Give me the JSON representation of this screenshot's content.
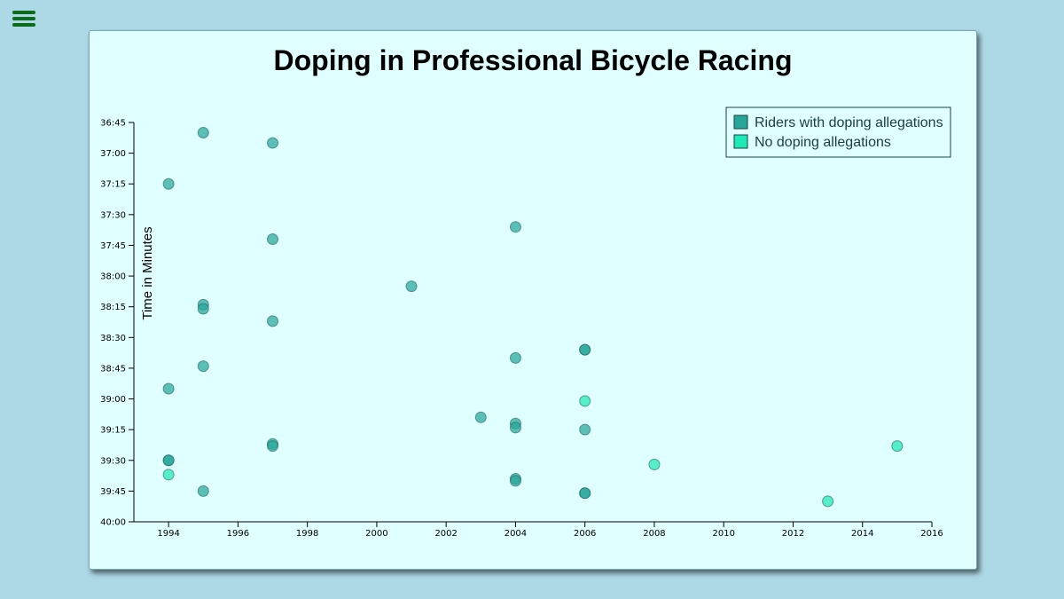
{
  "menu": {
    "icon": "hamburger-menu-icon"
  },
  "chart_data": {
    "type": "scatter",
    "title": "Doping in Professional Bicycle Racing",
    "xlabel": "",
    "ylabel": "Time in Minutes",
    "xlim": [
      1993,
      2016
    ],
    "ylim": [
      "36:45",
      "40:00"
    ],
    "y_inverted": true,
    "x_ticks": [
      1994,
      1996,
      1998,
      2000,
      2002,
      2004,
      2006,
      2008,
      2010,
      2012,
      2014,
      2016
    ],
    "y_ticks": [
      "36:45",
      "37:00",
      "37:15",
      "37:30",
      "37:45",
      "38:00",
      "38:15",
      "38:30",
      "38:45",
      "39:00",
      "39:15",
      "39:30",
      "39:45",
      "40:00"
    ],
    "grid": false,
    "legend_position": "top-right",
    "colors": {
      "doping": "#26a69a",
      "no_doping": "#1de9b6"
    },
    "series": [
      {
        "name": "Riders with doping allegations",
        "color": "#26a69a",
        "points": [
          {
            "x": 1995,
            "y": "36:50"
          },
          {
            "x": 1997,
            "y": "36:55"
          },
          {
            "x": 1994,
            "y": "37:15"
          },
          {
            "x": 2004,
            "y": "37:36"
          },
          {
            "x": 1997,
            "y": "37:42"
          },
          {
            "x": 2001,
            "y": "38:05"
          },
          {
            "x": 1995,
            "y": "38:14"
          },
          {
            "x": 1995,
            "y": "38:16"
          },
          {
            "x": 1997,
            "y": "38:22"
          },
          {
            "x": 2006,
            "y": "38:36"
          },
          {
            "x": 2006,
            "y": "38:36"
          },
          {
            "x": 2004,
            "y": "38:40"
          },
          {
            "x": 1995,
            "y": "38:44"
          },
          {
            "x": 1994,
            "y": "38:55"
          },
          {
            "x": 2003,
            "y": "39:09"
          },
          {
            "x": 2004,
            "y": "39:12"
          },
          {
            "x": 2004,
            "y": "39:14"
          },
          {
            "x": 2006,
            "y": "39:15"
          },
          {
            "x": 1997,
            "y": "39:22"
          },
          {
            "x": 1997,
            "y": "39:23"
          },
          {
            "x": 1994,
            "y": "39:30"
          },
          {
            "x": 1994,
            "y": "39:30"
          },
          {
            "x": 2004,
            "y": "39:39"
          },
          {
            "x": 2004,
            "y": "39:40"
          },
          {
            "x": 1995,
            "y": "39:45"
          },
          {
            "x": 2006,
            "y": "39:46"
          },
          {
            "x": 2006,
            "y": "39:46"
          }
        ]
      },
      {
        "name": "No doping allegations",
        "color": "#1de9b6",
        "points": [
          {
            "x": 2006,
            "y": "39:01"
          },
          {
            "x": 2015,
            "y": "39:23"
          },
          {
            "x": 2008,
            "y": "39:32"
          },
          {
            "x": 1994,
            "y": "39:37"
          },
          {
            "x": 2013,
            "y": "39:50"
          }
        ]
      }
    ]
  }
}
